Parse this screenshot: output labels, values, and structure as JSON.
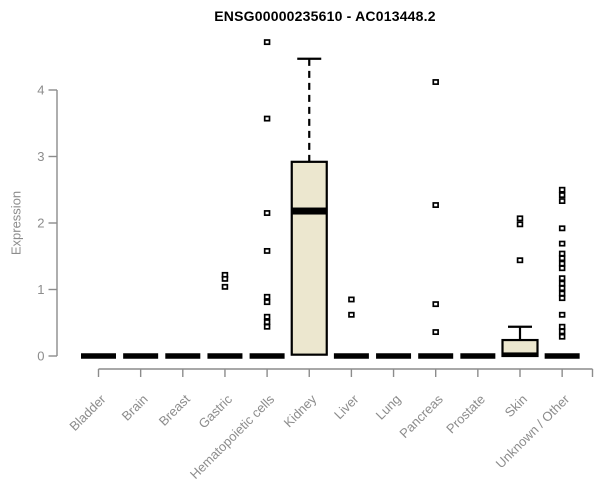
{
  "chart_data": {
    "type": "boxplot",
    "title": "ENSG00000235610 - AC013448.2",
    "ylabel": "Expression",
    "xlabel": "",
    "yticks": [
      0,
      1,
      2,
      3,
      4
    ],
    "ylim": [
      0,
      4.8
    ],
    "grid": false,
    "legend": "none",
    "categories": [
      "Bladder",
      "Brain",
      "Breast",
      "Gastric",
      "Hematopoietic cells",
      "Kidney",
      "Liver",
      "Lung",
      "Pancreas",
      "Prostate",
      "Skin",
      "Unknown / Other"
    ],
    "boxes": [
      {
        "category": "Bladder",
        "q1": 0,
        "median": 0,
        "q3": 0,
        "whisker_low": 0,
        "whisker_high": 0,
        "outliers": []
      },
      {
        "category": "Brain",
        "q1": 0,
        "median": 0,
        "q3": 0,
        "whisker_low": 0,
        "whisker_high": 0,
        "outliers": []
      },
      {
        "category": "Breast",
        "q1": 0,
        "median": 0,
        "q3": 0,
        "whisker_low": 0,
        "whisker_high": 0,
        "outliers": []
      },
      {
        "category": "Gastric",
        "q1": 0,
        "median": 0,
        "q3": 0,
        "whisker_low": 0,
        "whisker_high": 0,
        "outliers": [
          1.22,
          1.16,
          1.04
        ]
      },
      {
        "category": "Hematopoietic cells",
        "q1": 0,
        "median": 0,
        "q3": 0,
        "whisker_low": 0,
        "whisker_high": 0,
        "outliers": [
          4.72,
          3.57,
          2.15,
          1.58,
          0.89,
          0.81,
          0.59,
          0.51,
          0.44
        ]
      },
      {
        "category": "Kidney",
        "q1": 0.02,
        "median": 2.18,
        "q3": 2.92,
        "whisker_low": 0.02,
        "whisker_high": 4.47,
        "outliers": []
      },
      {
        "category": "Liver",
        "q1": 0,
        "median": 0,
        "q3": 0,
        "whisker_low": 0,
        "whisker_high": 0,
        "outliers": [
          0.85,
          0.62
        ]
      },
      {
        "category": "Lung",
        "q1": 0,
        "median": 0,
        "q3": 0,
        "whisker_low": 0,
        "whisker_high": 0,
        "outliers": []
      },
      {
        "category": "Pancreas",
        "q1": 0,
        "median": 0,
        "q3": 0,
        "whisker_low": 0,
        "whisker_high": 0,
        "outliers": [
          4.12,
          2.27,
          0.78,
          0.36
        ]
      },
      {
        "category": "Prostate",
        "q1": 0,
        "median": 0,
        "q3": 0,
        "whisker_low": 0,
        "whisker_high": 0,
        "outliers": []
      },
      {
        "category": "Skin",
        "q1": 0,
        "median": 0.02,
        "q3": 0.24,
        "whisker_low": 0,
        "whisker_high": 0.44,
        "outliers": [
          2.07,
          1.98,
          1.44
        ]
      },
      {
        "category": "Unknown / Other",
        "q1": 0,
        "median": 0,
        "q3": 0,
        "whisker_low": 0,
        "whisker_high": 0,
        "outliers": [
          2.5,
          2.42,
          2.33,
          1.92,
          1.69,
          1.54,
          1.47,
          1.39,
          1.32,
          1.17,
          1.09,
          1.02,
          0.94,
          0.87,
          0.62,
          0.44,
          0.37,
          0.29
        ]
      }
    ],
    "colors": {
      "box_fill": "#ece7cf",
      "box_stroke": "#000000",
      "median": "#000000",
      "outlier_stroke": "#000000",
      "outlier_fill": "#ffffff",
      "axis": "#8c8c8c",
      "tick_label": "#8c8c8c",
      "title": "#000000"
    },
    "legend_position": "none"
  }
}
